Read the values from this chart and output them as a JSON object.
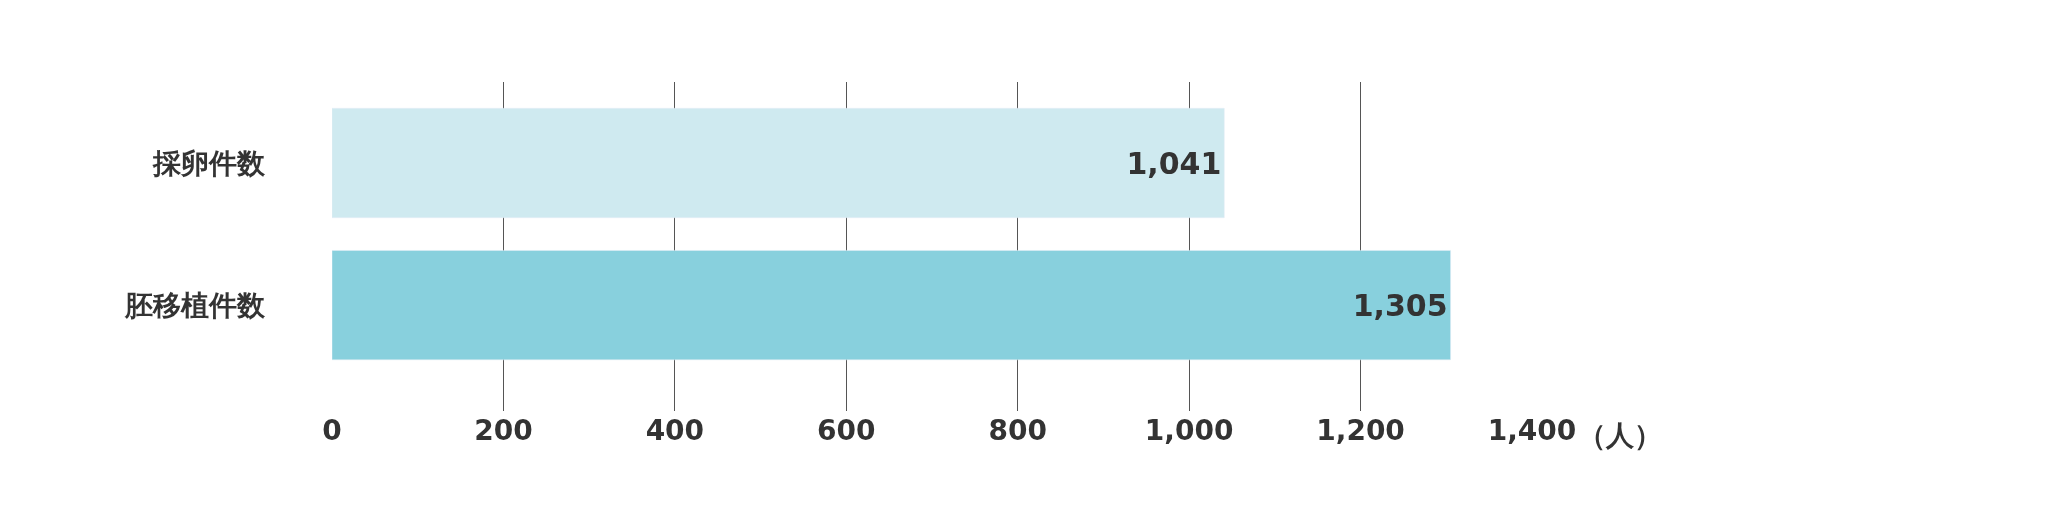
{
  "chart_data": {
    "type": "bar",
    "orientation": "horizontal",
    "categories": [
      "採卵件数",
      "胚移植件数"
    ],
    "values": [
      1041,
      1305
    ],
    "colors": [
      "#cfeaf0",
      "#88d0dd"
    ],
    "xlim": [
      0,
      1400
    ],
    "xticks": [
      0,
      {
        "value": 200,
        "label": "200"
      },
      {
        "value": 400,
        "label": "400"
      },
      {
        "value": 600,
        "label": "600"
      },
      {
        "value": 800,
        "label": "800"
      },
      {
        "value": 1000,
        "label": "1,000"
      },
      {
        "value": 1200,
        "label": "1,200"
      },
      {
        "value": 1400,
        "label": "1,400"
      }
    ],
    "xlabel": "（人）",
    "grid": "x",
    "value_labels": [
      "1,041",
      "1,305"
    ]
  }
}
